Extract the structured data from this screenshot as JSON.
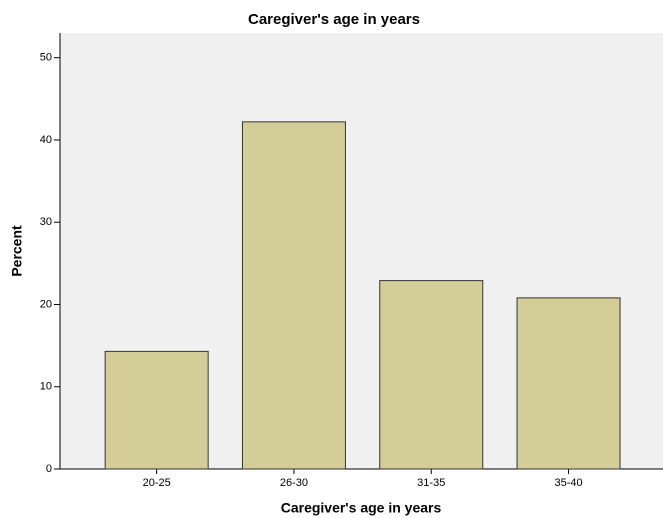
{
  "chart_data": {
    "type": "bar",
    "title": "Caregiver's age in years",
    "x_label": "Caregiver's age in years",
    "y_label": "Percent",
    "categories": [
      "20-25",
      "26-30",
      "31-35",
      "35-40"
    ],
    "values": [
      14.3,
      42.2,
      22.9,
      20.8
    ],
    "color": "#d3ce97",
    "ylim": [
      0,
      53
    ],
    "yticks": [
      0,
      10,
      20,
      30,
      40,
      50
    ],
    "grid": false
  }
}
